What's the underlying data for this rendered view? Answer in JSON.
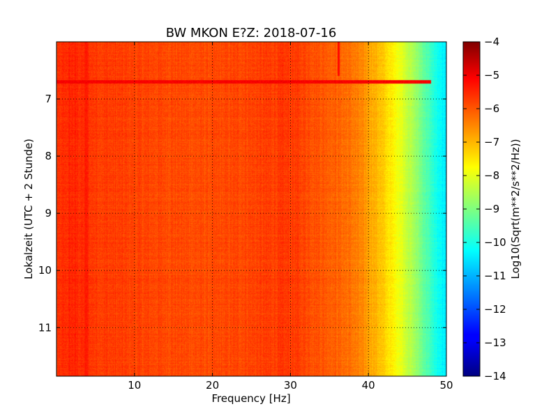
{
  "chart_data": {
    "type": "heatmap",
    "title": "BW MKON E?Z: 2018-07-16",
    "xlabel": "Frequency [Hz]",
    "ylabel": "Lokalzeit (UTC + 2 Stunde)",
    "xlim": [
      0,
      50
    ],
    "ylim": [
      6,
      11.85
    ],
    "y_inverted": true,
    "xticks": [
      10,
      20,
      30,
      40,
      50
    ],
    "yticks": [
      7,
      8,
      9,
      10,
      11
    ],
    "grid": true,
    "colormap": "jet",
    "colorbar": {
      "label": "Log10(Sqrt(m**2/s**2/Hz))",
      "range": [
        -14,
        -4
      ],
      "ticks": [
        -4,
        -5,
        -6,
        -7,
        -8,
        -9,
        -10,
        -11,
        -12,
        -13,
        -14
      ]
    },
    "frequency_profile": {
      "frequency_hz": [
        0,
        2,
        5,
        10,
        20,
        25,
        30,
        33,
        36,
        38,
        39.5,
        41,
        42,
        43,
        44,
        45,
        46,
        47,
        48,
        49,
        50
      ],
      "log10_amplitude": [
        -5.8,
        -5.6,
        -5.8,
        -5.9,
        -6.0,
        -5.9,
        -5.8,
        -6.0,
        -6.2,
        -6.4,
        -6.7,
        -7.0,
        -7.3,
        -7.6,
        -7.9,
        -8.3,
        -8.7,
        -9.2,
        -9.7,
        -10.2,
        -10.5
      ]
    },
    "features": [
      {
        "type": "horizontal_band",
        "time_hours": 6.7,
        "freq_range_hz": [
          0,
          48
        ],
        "log10_amplitude": -5.2
      },
      {
        "type": "vertical_line",
        "freq_hz": 36.2,
        "time_range_hours": [
          6.0,
          6.6
        ],
        "log10_amplitude": -5.3
      },
      {
        "type": "vertical_band",
        "freq_hz": 3.8,
        "time_range_hours": [
          6.0,
          11.85
        ],
        "log10_amplitude": -5.5
      }
    ]
  },
  "colors": {
    "frame": "#000000",
    "grid": "#000000",
    "background": "#ffffff"
  }
}
